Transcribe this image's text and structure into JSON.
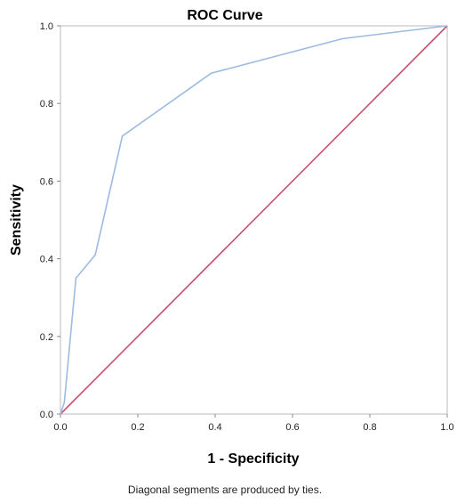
{
  "chart_data": {
    "type": "line",
    "title": "ROC Curve",
    "xlabel": "1 - Specificity",
    "ylabel": "Sensitivity",
    "xlim": [
      0,
      1
    ],
    "ylim": [
      0,
      1
    ],
    "x_ticks": [
      "0.0",
      "0.2",
      "0.4",
      "0.6",
      "0.8",
      "1.0"
    ],
    "y_ticks": [
      "0.0",
      "0.2",
      "0.4",
      "0.6",
      "0.8",
      "1.0"
    ],
    "grid": false,
    "series": [
      {
        "color": "#9dbbe0",
        "x": [
          0.0,
          0.01,
          0.04,
          0.09,
          0.16,
          0.39,
          0.73,
          1.0
        ],
        "y": [
          0.0,
          0.03,
          0.35,
          0.41,
          0.716,
          0.878,
          0.967,
          1.0
        ]
      },
      {
        "color": "#c8506e",
        "x": [
          0.0,
          1.0
        ],
        "y": [
          0.0,
          1.0
        ]
      }
    ],
    "footnote": "Diagonal segments are produced by ties."
  }
}
